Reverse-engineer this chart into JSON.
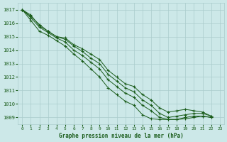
{
  "title": "Graphe pression niveau de la mer (hPa)",
  "bg_color": "#cce8e8",
  "grid_color": "#aacccc",
  "line_color": "#1a5c1a",
  "marker_color": "#1a5c1a",
  "xlim": [
    -0.5,
    23.5
  ],
  "ylim": [
    1008.5,
    1017.5
  ],
  "yticks": [
    1009,
    1010,
    1011,
    1012,
    1013,
    1014,
    1015,
    1016,
    1017
  ],
  "xticks": [
    0,
    1,
    2,
    3,
    4,
    5,
    6,
    7,
    8,
    9,
    10,
    11,
    12,
    13,
    14,
    15,
    16,
    17,
    18,
    19,
    20,
    21,
    22,
    23
  ],
  "series": [
    [
      1017.0,
      1016.6,
      1015.8,
      1015.4,
      1015.0,
      1014.9,
      1014.4,
      1014.1,
      1013.7,
      1013.3,
      1012.5,
      1012.0,
      1011.5,
      1011.3,
      1010.7,
      1010.3,
      1009.7,
      1009.4,
      1009.5,
      1009.6,
      1009.5,
      1009.4,
      1009.1
    ],
    [
      1017.0,
      1016.5,
      1015.9,
      1015.4,
      1015.0,
      1014.8,
      1014.3,
      1013.9,
      1013.4,
      1013.0,
      1012.2,
      1011.7,
      1011.2,
      1010.9,
      1010.3,
      1009.9,
      1009.3,
      1009.0,
      1009.1,
      1009.2,
      1009.3,
      1009.3,
      1009.1
    ],
    [
      1017.0,
      1016.4,
      1015.7,
      1015.3,
      1014.9,
      1014.6,
      1014.0,
      1013.6,
      1013.1,
      1012.6,
      1011.8,
      1011.3,
      1010.8,
      1010.5,
      1009.9,
      1009.5,
      1009.0,
      1008.85,
      1008.85,
      1009.0,
      1009.1,
      1009.1,
      1009.0
    ],
    [
      1017.0,
      1016.2,
      1015.4,
      1015.1,
      1014.7,
      1014.3,
      1013.7,
      1013.2,
      1012.6,
      1012.0,
      1011.2,
      1010.7,
      1010.2,
      1009.9,
      1009.2,
      1008.9,
      1008.85,
      1008.85,
      1008.85,
      1008.9,
      1009.0,
      1009.1,
      1009.0
    ]
  ]
}
